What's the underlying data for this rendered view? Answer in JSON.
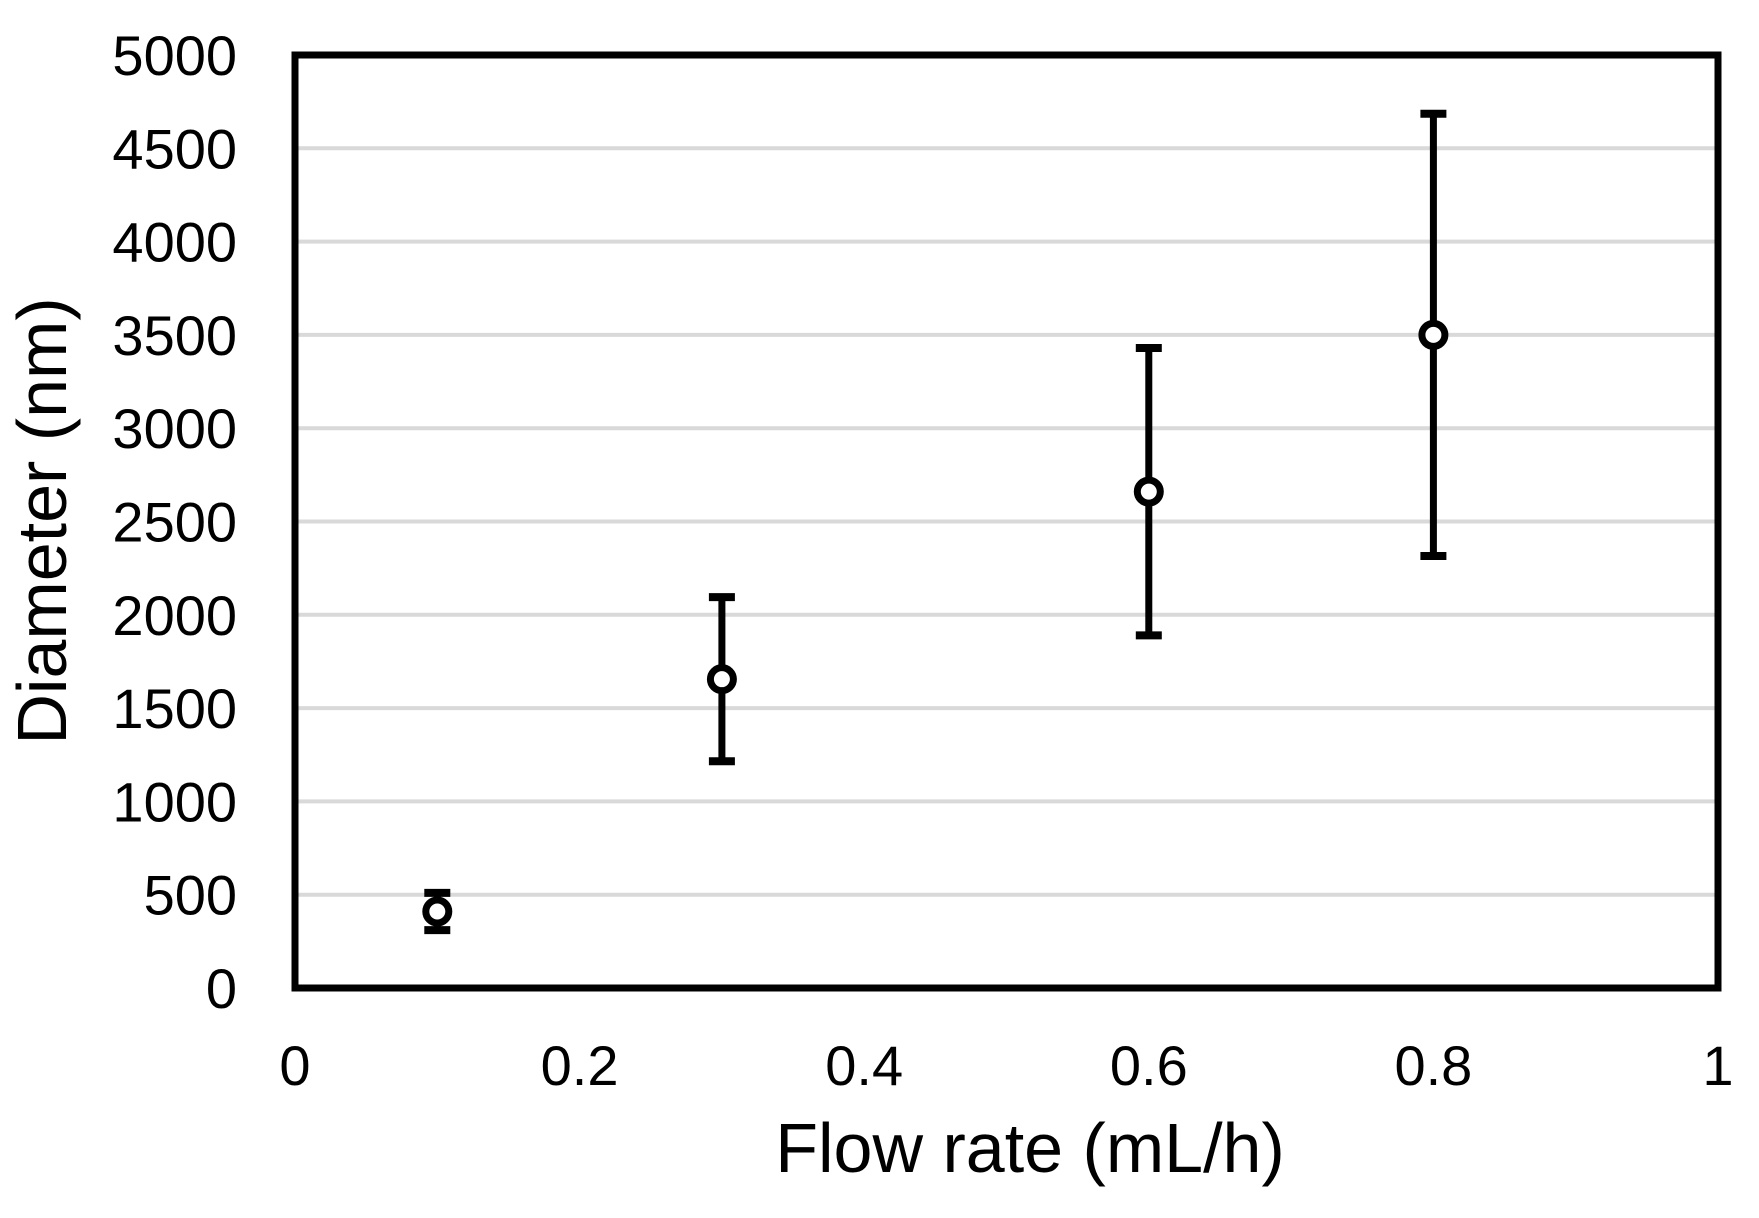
{
  "figure": {
    "background": "#ffffff",
    "grid_color": "#d9d9d9",
    "axis_color": "#000000",
    "text_color": "#000000",
    "marker_fill": "#ffffff",
    "marker_stroke": "#000000"
  },
  "chart_data": {
    "type": "scatter",
    "title": "",
    "xlabel": "Flow rate (mL/h)",
    "ylabel": "Diameter (nm)",
    "xlim": [
      0,
      1
    ],
    "ylim": [
      0,
      5000
    ],
    "grid": "horizontal",
    "legend": "none",
    "xticks": {
      "values": [
        0,
        0.2,
        0.4,
        0.6,
        0.8,
        1
      ],
      "labels": [
        "0",
        "0.2",
        "0.4",
        "0.6",
        "0.8",
        "1"
      ]
    },
    "yticks": {
      "values": [
        0,
        500,
        1000,
        1500,
        2000,
        2500,
        3000,
        3500,
        4000,
        4500,
        5000
      ],
      "labels": [
        "0",
        "500",
        "1000",
        "1500",
        "2000",
        "2500",
        "3000",
        "3500",
        "4000",
        "4500",
        "5000"
      ]
    },
    "series": [
      {
        "name": "diameter-vs-flow-rate",
        "marker": "open-circle",
        "points": [
          {
            "x": 0.1,
            "y": 410,
            "yerr": 100
          },
          {
            "x": 0.3,
            "y": 1655,
            "yerr": 440
          },
          {
            "x": 0.6,
            "y": 2660,
            "yerr": 770
          },
          {
            "x": 0.8,
            "y": 3500,
            "yerr": 1185
          }
        ]
      }
    ]
  }
}
